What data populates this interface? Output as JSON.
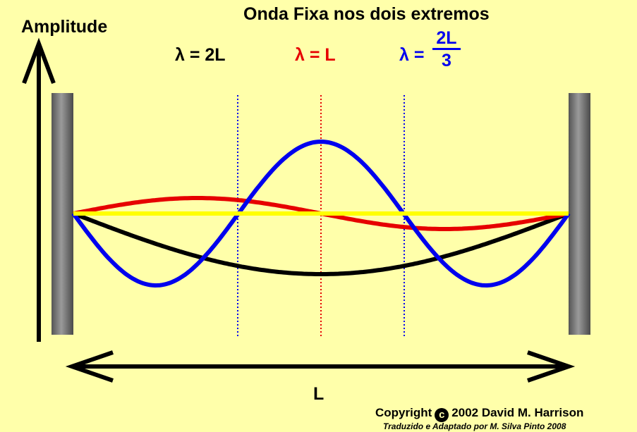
{
  "title": "Onda Fixa nos dois extremos",
  "axis": {
    "amplitude_label": "Amplitude",
    "length_label": "L"
  },
  "legend": {
    "black": {
      "text": "λ = 2L",
      "color": "#000000"
    },
    "red": {
      "text": "λ = L",
      "color": "#E60000"
    },
    "blue_prefix": "λ =",
    "blue_numerator": "2L",
    "blue_denominator": "3",
    "blue_color": "#0000EE"
  },
  "waves": [
    {
      "name": "black",
      "wavelength_in_L": 2,
      "color": "#000000"
    },
    {
      "name": "red",
      "wavelength_in_L": 1,
      "color": "#E60000"
    },
    {
      "name": "blue",
      "wavelength_in_L": 0.6667,
      "color": "#0000EE"
    },
    {
      "name": "yellow",
      "wavelength_in_L": 0,
      "color": "#FFFF00"
    }
  ],
  "footer": {
    "copyright_prefix": "Copyright",
    "copyright_symbol": "c",
    "copyright_text": "2002 David M. Harrison",
    "translated": "Traduzido e Adaptado por M. Silva Pinto 2008"
  }
}
